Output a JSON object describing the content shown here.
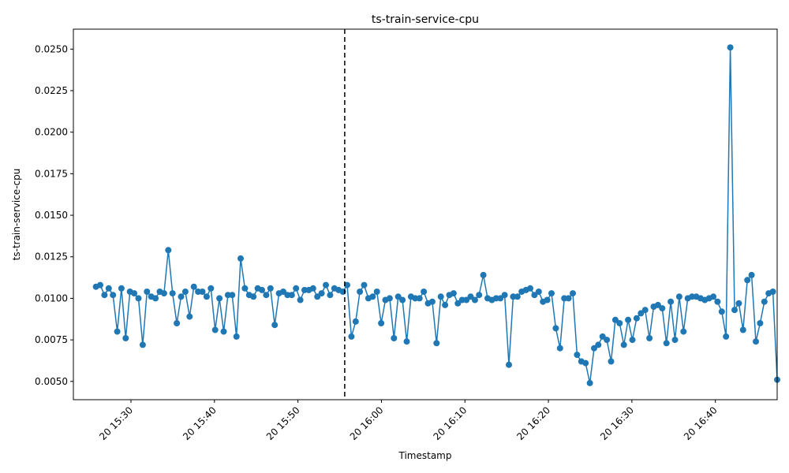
{
  "chart_data": {
    "type": "line",
    "title": "ts-train-service-cpu",
    "xlabel": "Timestamp",
    "ylabel": "ts-train-service-cpu",
    "xlim": [
      -13.8,
      154.8
    ],
    "ylim": [
      0.0039,
      0.0262
    ],
    "y_ticks": [
      0.005,
      0.0075,
      0.01,
      0.0125,
      0.015,
      0.0175,
      0.02,
      0.0225,
      0.025
    ],
    "y_tick_labels": [
      "0.0050",
      "0.0075",
      "0.0100",
      "0.0125",
      "0.0150",
      "0.0175",
      "0.0200",
      "0.0225",
      "0.0250"
    ],
    "x_ticks": [
      0,
      20,
      40,
      60,
      80,
      100,
      120,
      140
    ],
    "x_tick_labels": [
      "20 15:30",
      "20 15:40",
      "20 15:50",
      "20 16:00",
      "20 16:10",
      "20 16:20",
      "20 16:30",
      "20 16:40"
    ],
    "x_tick_rotation": 45,
    "line_color": "#1f77b4",
    "marker": "circle",
    "grid": false,
    "vline": {
      "x": 51.2,
      "color": "#000000",
      "style": "dashed"
    },
    "series": [
      {
        "x_start": -8.4,
        "x_step": 1.02,
        "values": [
          0.0107,
          0.0108,
          0.0102,
          0.0106,
          0.0102,
          0.008,
          0.0106,
          0.0076,
          0.0104,
          0.0103,
          0.01,
          0.0072,
          0.0104,
          0.0101,
          0.01,
          0.0104,
          0.0103,
          0.0129,
          0.0103,
          0.0085,
          0.0101,
          0.0104,
          0.0089,
          0.0107,
          0.0104,
          0.0104,
          0.0101,
          0.0106,
          0.0081,
          0.01,
          0.008,
          0.0102,
          0.0102,
          0.0077,
          0.0124,
          0.0106,
          0.0102,
          0.0101,
          0.0106,
          0.0105,
          0.0102,
          0.0106,
          0.0084,
          0.0103,
          0.0104,
          0.0102,
          0.0102,
          0.0106,
          0.0099,
          0.0105,
          0.0105,
          0.0106,
          0.0101,
          0.0103,
          0.0108,
          0.0102,
          0.0106,
          0.0105,
          0.0104,
          0.0108,
          0.0077,
          0.0086,
          0.0104,
          0.0108,
          0.01,
          0.0101,
          0.0104,
          0.0085,
          0.0099,
          0.01,
          0.0076,
          0.0101,
          0.0099,
          0.0074,
          0.0101,
          0.01,
          0.01,
          0.0104,
          0.0097,
          0.0098,
          0.0073,
          0.0101,
          0.0096,
          0.0102,
          0.0103,
          0.0097,
          0.0099,
          0.0099,
          0.0101,
          0.0099,
          0.0102,
          0.0114,
          0.01,
          0.0099,
          0.01,
          0.01,
          0.0102,
          0.006,
          0.0101,
          0.0101,
          0.0104,
          0.0105,
          0.0106,
          0.0102,
          0.0104,
          0.0098,
          0.0099,
          0.0103,
          0.0082,
          0.007,
          0.01,
          0.01,
          0.0103,
          0.0066,
          0.0062,
          0.0061,
          0.0049,
          0.007,
          0.0072,
          0.0077,
          0.0075,
          0.0062,
          0.0087,
          0.0085,
          0.0072,
          0.0087,
          0.0075,
          0.0088,
          0.0091,
          0.0093,
          0.0076,
          0.0095,
          0.0096,
          0.0094,
          0.0073,
          0.0098,
          0.0075,
          0.0101,
          0.008,
          0.01,
          0.0101,
          0.0101,
          0.01,
          0.0099,
          0.01,
          0.0101,
          0.0098,
          0.0092,
          0.0077,
          0.0251,
          0.0093,
          0.0097,
          0.0081,
          0.0111,
          0.0114,
          0.0074,
          0.0085,
          0.0098,
          0.0103,
          0.0104,
          0.0051
        ]
      }
    ]
  }
}
